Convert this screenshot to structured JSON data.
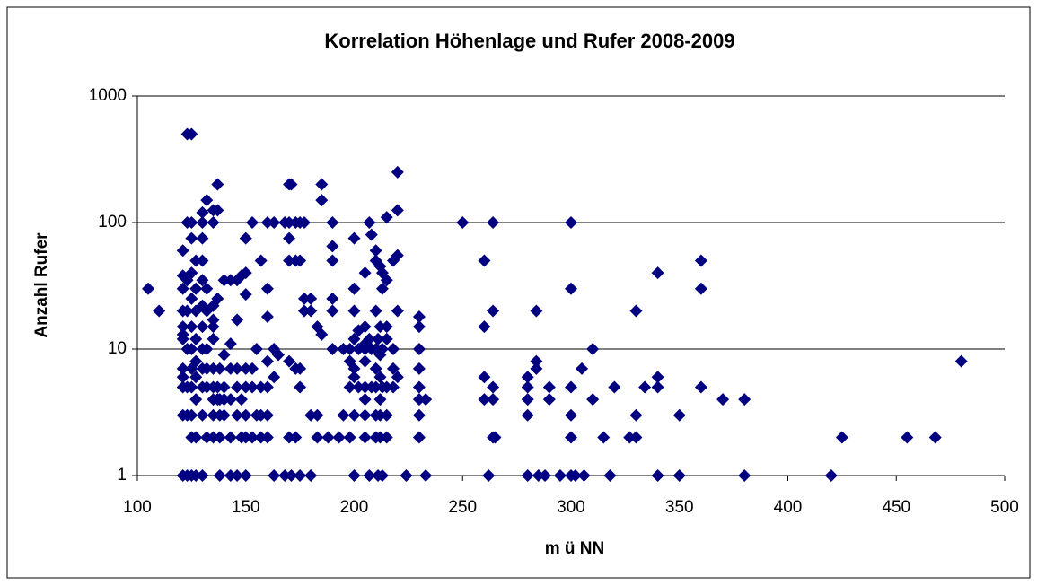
{
  "chart_data": {
    "type": "scatter",
    "title": "Korrelation Höhenlage und Rufer 2008-2009",
    "xlabel": "m ü NN",
    "ylabel": "Anzahl Rufer",
    "color": "#000080",
    "log_y": true,
    "grid": true,
    "xlim": [
      100,
      500
    ],
    "ylim": [
      1,
      1000
    ],
    "xticks": [
      100,
      150,
      200,
      250,
      300,
      350,
      400,
      450,
      500
    ],
    "yticks": [
      1,
      10,
      100,
      1000
    ],
    "x": [
      105,
      110,
      121,
      121,
      121,
      121,
      121,
      121,
      121,
      121,
      121,
      121,
      121,
      121,
      123,
      123,
      123,
      123,
      123,
      123,
      123,
      123,
      125,
      125,
      125,
      125,
      125,
      125,
      125,
      125,
      125,
      125,
      125,
      125,
      127,
      127,
      127,
      127,
      127,
      127,
      127,
      127,
      127,
      130,
      130,
      130,
      130,
      130,
      130,
      130,
      130,
      130,
      130,
      130,
      130,
      132,
      132,
      132,
      132,
      132,
      132,
      132,
      135,
      135,
      135,
      135,
      135,
      135,
      135,
      135,
      135,
      135,
      135,
      137,
      137,
      137,
      137,
      137,
      138,
      138,
      138,
      138,
      138,
      140,
      140,
      140,
      140,
      140,
      143,
      143,
      143,
      143,
      143,
      143,
      146,
      146,
      146,
      146,
      146,
      146,
      148,
      148,
      148,
      150,
      150,
      150,
      150,
      150,
      150,
      150,
      150,
      153,
      153,
      153,
      153,
      155,
      155,
      157,
      157,
      157,
      157,
      160,
      160,
      160,
      160,
      160,
      160,
      160,
      163,
      163,
      163,
      163,
      165,
      168,
      168,
      170,
      170,
      170,
      170,
      170,
      170,
      171,
      171,
      173,
      173,
      173,
      173,
      175,
      175,
      175,
      175,
      175,
      177,
      177,
      177,
      180,
      180,
      180,
      180,
      183,
      183,
      183,
      185,
      185,
      185,
      188,
      190,
      190,
      190,
      190,
      190,
      190,
      193,
      195,
      195,
      198,
      198,
      198,
      198,
      200,
      200,
      200,
      200,
      200,
      200,
      200,
      200,
      202,
      202,
      202,
      205,
      205,
      205,
      205,
      205,
      205,
      205,
      205,
      205,
      207,
      207,
      207,
      208,
      208,
      208,
      210,
      210,
      210,
      210,
      210,
      210,
      210,
      210,
      211,
      211,
      212,
      212,
      212,
      212,
      212,
      212,
      212,
      213,
      213,
      213,
      213,
      213,
      215,
      215,
      215,
      215,
      215,
      215,
      215,
      218,
      218,
      218,
      218,
      220,
      220,
      220,
      220,
      220,
      224,
      230,
      230,
      230,
      230,
      230,
      230,
      230,
      230,
      233,
      233,
      250,
      260,
      260,
      260,
      260,
      262,
      264,
      264,
      264,
      264,
      264,
      265,
      280,
      280,
      280,
      280,
      280,
      284,
      284,
      284,
      285,
      288,
      290,
      290,
      295,
      300,
      300,
      300,
      300,
      300,
      300,
      302,
      305,
      306,
      310,
      310,
      315,
      318,
      320,
      327,
      330,
      330,
      330,
      334,
      340,
      340,
      340,
      340,
      350,
      350,
      360,
      360,
      360,
      370,
      380,
      380,
      420,
      425,
      455,
      468,
      480
    ],
    "values": [
      30,
      20,
      1,
      3,
      5,
      6,
      7,
      12,
      13,
      15,
      20,
      30,
      38,
      60,
      500,
      1,
      3,
      5,
      10,
      20,
      35,
      100,
      500,
      1,
      2,
      3,
      5,
      7,
      10,
      15,
      25,
      40,
      75,
      100,
      1,
      2,
      4,
      6,
      8,
      12,
      20,
      30,
      50,
      1,
      3,
      5,
      7,
      10,
      15,
      22,
      35,
      50,
      75,
      100,
      120,
      2,
      5,
      7,
      10,
      20,
      30,
      150,
      2,
      3,
      4,
      5,
      7,
      12,
      15,
      17,
      22,
      100,
      125,
      4,
      5,
      25,
      125,
      200,
      1,
      2,
      3,
      4,
      7,
      3,
      4,
      5,
      9,
      35,
      1,
      2,
      4,
      7,
      11,
      35,
      1,
      3,
      5,
      7,
      17,
      35,
      2,
      4,
      38,
      1,
      2,
      3,
      5,
      7,
      27,
      40,
      75,
      2,
      5,
      7,
      100,
      3,
      10,
      2,
      3,
      5,
      50,
      2,
      3,
      5,
      8,
      18,
      30,
      100,
      1,
      6,
      10,
      100,
      9,
      1,
      100,
      2,
      8,
      50,
      75,
      100,
      200,
      1,
      200,
      2,
      7,
      50,
      100,
      1,
      5,
      7,
      50,
      100,
      20,
      25,
      100,
      1,
      3,
      20,
      25,
      2,
      3,
      15,
      13,
      150,
      200,
      2,
      10,
      20,
      25,
      50,
      65,
      100,
      2,
      3,
      10,
      2,
      5,
      8,
      10,
      1,
      3,
      6,
      7,
      12,
      20,
      30,
      75,
      5,
      10,
      14,
      2,
      3,
      4,
      5,
      8,
      10,
      11,
      15,
      40,
      1,
      12,
      100,
      5,
      10,
      80,
      2,
      3,
      5,
      7,
      10,
      20,
      50,
      60,
      1,
      12,
      2,
      3,
      4,
      6,
      9,
      15,
      45,
      1,
      5,
      10,
      30,
      40,
      2,
      3,
      5,
      12,
      15,
      35,
      110,
      5,
      7,
      10,
      50,
      6,
      20,
      55,
      125,
      250,
      1,
      2,
      3,
      4,
      5,
      7,
      10,
      15,
      18,
      1,
      4,
      100,
      4,
      6,
      15,
      50,
      1,
      2,
      4,
      5,
      20,
      100,
      2,
      1,
      3,
      4,
      5,
      6,
      7,
      8,
      20,
      1,
      1,
      4,
      5,
      1,
      1,
      2,
      3,
      5,
      30,
      100,
      1,
      7,
      1,
      4,
      10,
      2,
      1,
      5,
      2,
      2,
      3,
      20,
      5,
      1,
      5,
      6,
      40,
      1,
      3,
      5,
      30,
      50,
      4,
      1,
      4,
      1,
      2,
      2,
      2,
      8
    ]
  }
}
